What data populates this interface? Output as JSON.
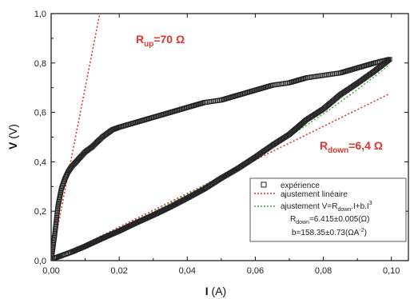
{
  "chart_data": {
    "type": "scatter",
    "xlabel": {
      "main": "I",
      "unit": " (A)"
    },
    "ylabel": {
      "main": "V",
      "unit": " (V)"
    },
    "xlim": [
      0,
      0.105
    ],
    "ylim": [
      0,
      1.0
    ],
    "x_ticks": [
      "0,00",
      "0,02",
      "0,04",
      "0,06",
      "0,08",
      "0,10"
    ],
    "y_ticks": [
      "0,0",
      "0,2",
      "0,4",
      "0,6",
      "0,8",
      "1,0"
    ],
    "annotations": {
      "r_up": {
        "main": "R",
        "sub": "up",
        "rest": "=70 Ω"
      },
      "r_down": {
        "main": "R",
        "sub": "down",
        "rest": "=6,4 Ω"
      }
    },
    "legend": {
      "experience": "expérience",
      "lin_fit": "ajustement linéaire",
      "cubic_fit": {
        "pre": "ajustement V=R",
        "sub": "down",
        "mid": ".I+b.I",
        "sup": "3"
      },
      "r_value": {
        "pre": "R",
        "sub": "down",
        "rest": "=6.415±0.005(Ω)"
      },
      "b_value": {
        "pre": "b=158.35±0.73(ΩA",
        "sup": "-2",
        "post": ")"
      }
    },
    "series": [
      {
        "name": "expérience",
        "style": "open-square",
        "color": "#222222",
        "x": [
          0.0,
          0.0005,
          0.001,
          0.0015,
          0.002,
          0.003,
          0.004,
          0.005,
          0.006,
          0.008,
          0.01,
          0.012,
          0.015,
          0.018,
          0.02,
          0.025,
          0.03,
          0.035,
          0.04,
          0.045,
          0.05,
          0.055,
          0.06,
          0.065,
          0.07,
          0.075,
          0.08,
          0.085,
          0.09,
          0.095,
          0.0995,
          0.095,
          0.09,
          0.085,
          0.08,
          0.075,
          0.07,
          0.065,
          0.06,
          0.055,
          0.05,
          0.045,
          0.04,
          0.035,
          0.03,
          0.025,
          0.02,
          0.015,
          0.01,
          0.006,
          0.003,
          0.001
        ],
        "y": [
          0.0,
          0.05,
          0.1,
          0.16,
          0.22,
          0.29,
          0.33,
          0.36,
          0.38,
          0.41,
          0.44,
          0.46,
          0.5,
          0.53,
          0.54,
          0.56,
          0.58,
          0.6,
          0.62,
          0.64,
          0.65,
          0.67,
          0.69,
          0.71,
          0.72,
          0.74,
          0.75,
          0.76,
          0.78,
          0.8,
          0.815,
          0.767,
          0.718,
          0.672,
          0.614,
          0.57,
          0.511,
          0.467,
          0.419,
          0.374,
          0.334,
          0.29,
          0.253,
          0.217,
          0.184,
          0.153,
          0.12,
          0.09,
          0.058,
          0.035,
          0.02,
          0.01
        ]
      },
      {
        "name": "ajustement linéaire",
        "style": "dotted",
        "color": "#e8322a",
        "segments": [
          {
            "x": [
              0.0,
              0.0143
            ],
            "y": [
              0.0,
              1.0
            ]
          },
          {
            "x": [
              0.0,
              0.0995
            ],
            "y": [
              0.0,
              0.676
            ]
          }
        ]
      },
      {
        "name": "ajustement V=Rdown.I+b.I3",
        "style": "dotted",
        "color": "#3cb43c",
        "r_down": 6.415,
        "b": 158.35,
        "x_range": [
          0.0,
          0.0995
        ]
      }
    ]
  }
}
